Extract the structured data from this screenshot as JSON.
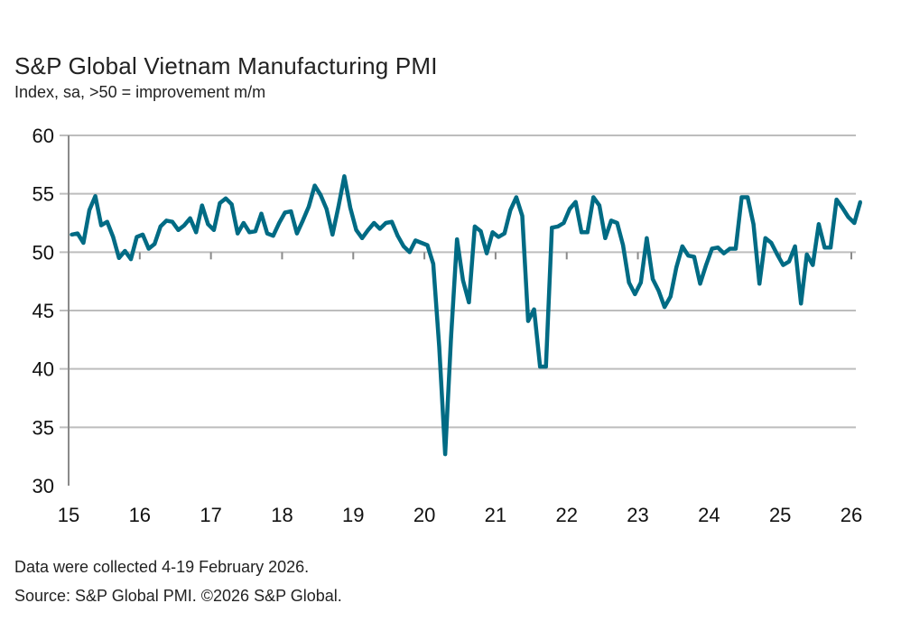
{
  "chart_data": {
    "type": "line",
    "title": "S&P Global Vietnam Manufacturing PMI",
    "subtitle": "Index, sa, >50 = improvement m/m",
    "xlabel": "",
    "ylabel": "",
    "x_start": "2015-01",
    "x_end": "2026-02",
    "x_frequency": "monthly",
    "x_ticks": [
      "15",
      "16",
      "17",
      "18",
      "19",
      "20",
      "21",
      "22",
      "23",
      "24",
      "25",
      "26"
    ],
    "ylim": [
      30,
      60
    ],
    "y_ticks": [
      30,
      35,
      40,
      45,
      50,
      55,
      60
    ],
    "grid": true,
    "line_color": "#006b84",
    "series": [
      {
        "values": [
          51.5,
          51.6,
          50.8,
          53.6,
          54.8,
          52.3,
          52.6,
          51.3,
          49.5,
          50.1,
          49.4,
          51.3,
          51.5,
          50.3,
          50.7,
          52.2,
          52.7,
          52.6,
          51.9,
          52.3,
          52.9,
          51.7,
          54.0,
          52.4,
          51.9,
          54.2,
          54.6,
          54.1,
          51.6,
          52.5,
          51.7,
          51.8,
          53.3,
          51.6,
          51.4,
          52.5,
          53.4,
          53.5,
          51.6,
          52.7,
          53.9,
          55.7,
          54.9,
          53.7,
          51.5,
          53.9,
          56.5,
          53.8,
          51.9,
          51.2,
          51.9,
          52.5,
          52.0,
          52.5,
          52.6,
          51.4,
          50.5,
          50.0,
          51.0,
          50.8,
          50.6,
          49.0,
          41.9,
          32.7,
          42.7,
          51.1,
          47.6,
          45.7,
          52.2,
          51.8,
          49.9,
          51.7,
          51.3,
          51.6,
          53.6,
          54.7,
          53.1,
          44.1,
          45.1,
          40.2,
          40.2,
          52.1,
          52.2,
          52.5,
          53.7,
          54.3,
          51.7,
          51.7,
          54.7,
          54.0,
          51.2,
          52.7,
          52.5,
          50.6,
          47.4,
          46.4,
          47.4,
          51.2,
          47.7,
          46.7,
          45.3,
          46.2,
          48.7,
          50.5,
          49.7,
          49.6,
          47.3,
          48.9,
          50.3,
          50.4,
          49.9,
          50.3,
          50.3,
          54.7,
          54.7,
          52.4,
          47.3,
          51.2,
          50.8,
          49.8,
          48.9,
          49.2,
          50.5,
          45.6,
          49.8,
          48.9,
          52.4,
          50.4,
          50.4,
          54.5,
          53.8,
          53.0,
          52.5,
          54.3
        ]
      }
    ]
  },
  "footer": {
    "note": "Data were collected 4-19 February 2026.",
    "source": "Source: S&P Global PMI. ©2026 S&P Global."
  }
}
